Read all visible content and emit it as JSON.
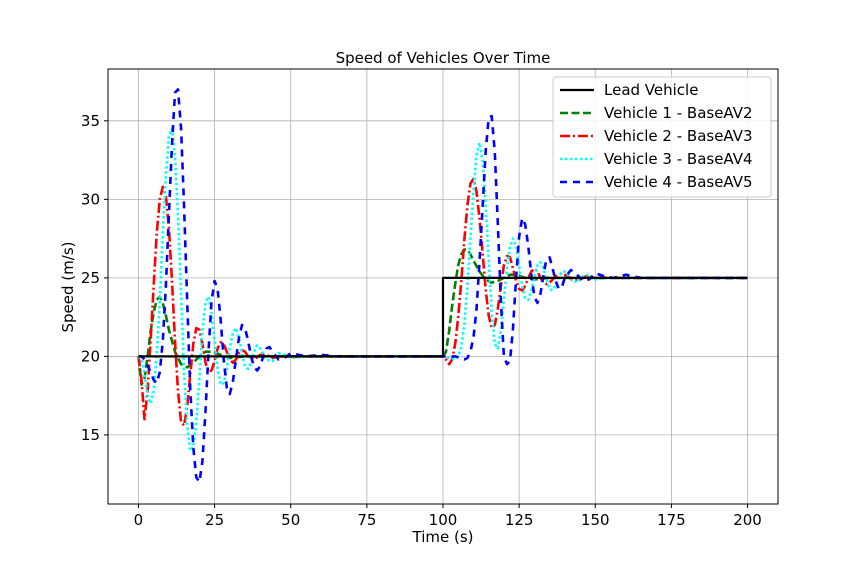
{
  "chart_data": {
    "type": "line",
    "title": "Speed of Vehicles Over Time",
    "xlabel": "Time (s)",
    "ylabel": "Speed (m/s)",
    "xlim": [
      -10,
      210
    ],
    "ylim": [
      10.6,
      38.3
    ],
    "xticks": [
      0,
      25,
      50,
      75,
      100,
      125,
      150,
      175,
      200
    ],
    "yticks": [
      15,
      20,
      25,
      30,
      35
    ],
    "grid": true,
    "legend_position": "top-right",
    "series": [
      {
        "name": "Lead Vehicle",
        "color": "#000000",
        "dash": "solid",
        "x": [
          0,
          100,
          100,
          200
        ],
        "y": [
          20,
          20,
          25,
          25
        ]
      },
      {
        "name": "Vehicle 1 - BaseAV2",
        "color": "#008000",
        "dash": "dashed",
        "x": [
          0,
          1,
          2,
          3,
          4,
          5,
          6,
          7,
          8,
          9,
          10,
          12,
          14,
          16,
          18,
          20,
          22,
          24,
          27,
          30,
          35,
          40,
          50,
          60,
          75,
          100,
          101,
          102,
          103,
          104,
          105,
          106,
          107,
          108,
          109,
          110,
          112,
          114,
          116,
          118,
          120,
          122,
          124,
          127,
          130,
          135,
          140,
          150,
          160,
          175,
          200
        ],
        "y": [
          20,
          18.2,
          18.6,
          20.0,
          21.6,
          22.8,
          23.6,
          23.8,
          23.4,
          22.6,
          21.7,
          20.3,
          19.5,
          19.3,
          19.6,
          20.0,
          20.3,
          20.3,
          20.1,
          19.9,
          20.0,
          20.0,
          20.0,
          20.0,
          20.0,
          20.0,
          20.3,
          21.6,
          23.2,
          24.6,
          25.8,
          26.5,
          26.8,
          26.8,
          26.5,
          26.1,
          25.4,
          24.9,
          24.7,
          24.8,
          25.0,
          25.2,
          25.2,
          25.0,
          24.9,
          25.0,
          25.0,
          25.0,
          25.0,
          25.0,
          25.0
        ]
      },
      {
        "name": "Vehicle 2 - BaseAV3",
        "color": "#ff0000",
        "dash": "dashdot",
        "x": [
          0,
          1,
          2,
          3,
          4,
          5,
          6,
          7,
          8,
          9,
          10,
          11,
          12,
          13,
          14,
          15,
          16,
          17,
          18,
          19,
          20,
          21,
          22,
          23,
          24,
          25,
          26,
          27,
          28,
          29,
          30,
          31,
          32,
          33,
          34,
          35,
          36,
          38,
          40,
          42,
          44,
          46,
          48,
          50,
          55,
          60,
          70,
          80,
          100,
          101,
          102,
          103,
          104,
          105,
          106,
          107,
          108,
          109,
          110,
          111,
          112,
          113,
          114,
          115,
          116,
          117,
          118,
          119,
          120,
          121,
          122,
          123,
          124,
          125,
          126,
          127,
          128,
          129,
          130,
          131,
          132,
          133,
          134,
          135,
          137,
          139,
          141,
          143,
          145,
          147,
          150,
          155,
          160,
          170,
          180,
          200
        ],
        "y": [
          20,
          18.5,
          16.0,
          17.8,
          21.0,
          24.5,
          27.8,
          30.0,
          30.8,
          30.2,
          28.2,
          24.8,
          21.0,
          17.8,
          15.8,
          15.6,
          16.8,
          18.8,
          20.8,
          21.8,
          21.7,
          20.8,
          19.6,
          19.0,
          19.1,
          19.7,
          20.5,
          20.9,
          20.8,
          20.3,
          19.8,
          19.6,
          19.8,
          20.2,
          20.4,
          20.3,
          20.0,
          19.8,
          20.1,
          20.1,
          19.9,
          20.0,
          20.0,
          20.0,
          20.0,
          20.0,
          20.0,
          20.0,
          20.0,
          19.8,
          19.5,
          19.8,
          20.8,
          22.5,
          24.8,
          27.4,
          29.6,
          31.0,
          31.3,
          30.5,
          28.8,
          26.6,
          24.3,
          22.6,
          21.8,
          22.0,
          23.0,
          24.5,
          25.8,
          26.4,
          26.3,
          25.6,
          24.8,
          24.3,
          24.2,
          24.5,
          25.0,
          25.4,
          25.6,
          25.4,
          25.0,
          24.7,
          24.6,
          24.7,
          25.1,
          25.3,
          25.1,
          24.8,
          24.9,
          25.1,
          25.0,
          25.0,
          25.0,
          25.0,
          25.0,
          25.0
        ]
      },
      {
        "name": "Vehicle 3 - BaseAV4",
        "color": "#00ffff",
        "dash": "dotted",
        "x": [
          0,
          1,
          2,
          3,
          4,
          5,
          6,
          7,
          8,
          9,
          10,
          11,
          12,
          13,
          14,
          15,
          16,
          17,
          18,
          19,
          20,
          21,
          22,
          23,
          24,
          25,
          26,
          27,
          28,
          29,
          30,
          31,
          32,
          33,
          34,
          35,
          36,
          37,
          38,
          39,
          40,
          42,
          44,
          46,
          48,
          50,
          55,
          60,
          70,
          80,
          100,
          102,
          104,
          105,
          106,
          107,
          108,
          109,
          110,
          111,
          112,
          113,
          114,
          115,
          116,
          117,
          118,
          119,
          120,
          121,
          122,
          123,
          124,
          125,
          126,
          127,
          128,
          129,
          130,
          131,
          132,
          133,
          134,
          135,
          136,
          137,
          138,
          139,
          140,
          142,
          144,
          146,
          148,
          150,
          155,
          160,
          170,
          180,
          200
        ],
        "y": [
          20,
          19.8,
          19.0,
          17.5,
          17.0,
          17.8,
          20.0,
          23.5,
          27.8,
          31.5,
          34.0,
          34.5,
          32.8,
          29.0,
          24.0,
          19.0,
          15.6,
          14.0,
          14.2,
          15.8,
          18.6,
          21.6,
          23.4,
          23.8,
          22.8,
          21.0,
          19.2,
          18.2,
          18.3,
          19.2,
          20.5,
          21.5,
          21.8,
          21.2,
          20.2,
          19.4,
          19.2,
          19.6,
          20.3,
          20.7,
          20.5,
          19.8,
          19.7,
          20.2,
          20.1,
          19.9,
          20.0,
          20.0,
          20.0,
          20.0,
          20.0,
          19.9,
          19.8,
          20.0,
          20.6,
          22.0,
          24.5,
          27.5,
          30.5,
          32.8,
          33.6,
          32.5,
          29.8,
          26.2,
          22.8,
          20.8,
          20.5,
          21.7,
          23.6,
          25.6,
          27.0,
          27.5,
          27.0,
          25.8,
          24.5,
          23.7,
          23.6,
          24.2,
          25.0,
          25.8,
          26.0,
          25.6,
          24.9,
          24.3,
          24.2,
          24.5,
          25.0,
          25.4,
          25.4,
          25.0,
          24.7,
          25.1,
          25.2,
          24.9,
          25.0,
          25.0,
          25.0,
          25.0,
          25.0
        ]
      },
      {
        "name": "Vehicle 4 - BaseAV5",
        "color": "#0000ff",
        "dash": "loosedash",
        "x": [
          0,
          1,
          2,
          3,
          4,
          5,
          6,
          7,
          8,
          9,
          10,
          11,
          12,
          13,
          14,
          15,
          16,
          17,
          18,
          19,
          20,
          21,
          22,
          23,
          24,
          25,
          26,
          27,
          28,
          29,
          30,
          31,
          32,
          33,
          34,
          35,
          36,
          37,
          38,
          39,
          40,
          41,
          42,
          43,
          44,
          46,
          48,
          50,
          55,
          60,
          65,
          70,
          80,
          100,
          102,
          104,
          106,
          107,
          108,
          109,
          110,
          111,
          112,
          113,
          114,
          115,
          116,
          117,
          118,
          119,
          120,
          121,
          122,
          123,
          124,
          125,
          126,
          127,
          128,
          129,
          130,
          131,
          132,
          133,
          134,
          135,
          136,
          137,
          138,
          139,
          140,
          142,
          144,
          146,
          148,
          150,
          153,
          156,
          160,
          165,
          170,
          180,
          200
        ],
        "y": [
          20,
          20.0,
          19.8,
          19.4,
          19.0,
          18.5,
          18.3,
          19.0,
          21.0,
          24.5,
          29.0,
          33.5,
          36.8,
          37.0,
          34.5,
          29.5,
          23.5,
          18.0,
          14.2,
          12.3,
          12.0,
          13.3,
          16.5,
          20.3,
          23.5,
          24.8,
          24.3,
          22.3,
          19.8,
          18.0,
          17.6,
          18.4,
          19.8,
          21.2,
          22.0,
          21.8,
          21.0,
          20.0,
          19.3,
          19.1,
          19.4,
          20.0,
          20.5,
          20.6,
          20.3,
          19.8,
          19.9,
          20.2,
          20.0,
          20.1,
          20.0,
          20.0,
          20.0,
          20.0,
          20.0,
          20.0,
          19.9,
          19.8,
          19.9,
          20.3,
          21.2,
          23.0,
          26.0,
          29.5,
          33.0,
          35.2,
          35.3,
          33.0,
          28.5,
          23.5,
          20.0,
          19.5,
          19.7,
          21.8,
          25.0,
          27.6,
          28.8,
          28.4,
          27.0,
          25.2,
          23.8,
          23.4,
          24.0,
          25.2,
          26.2,
          26.3,
          25.6,
          24.8,
          24.3,
          24.4,
          25.0,
          25.5,
          25.2,
          24.8,
          24.9,
          25.3,
          25.1,
          25.0,
          25.2,
          25.0,
          25.0,
          25.0,
          25.0
        ]
      }
    ]
  }
}
